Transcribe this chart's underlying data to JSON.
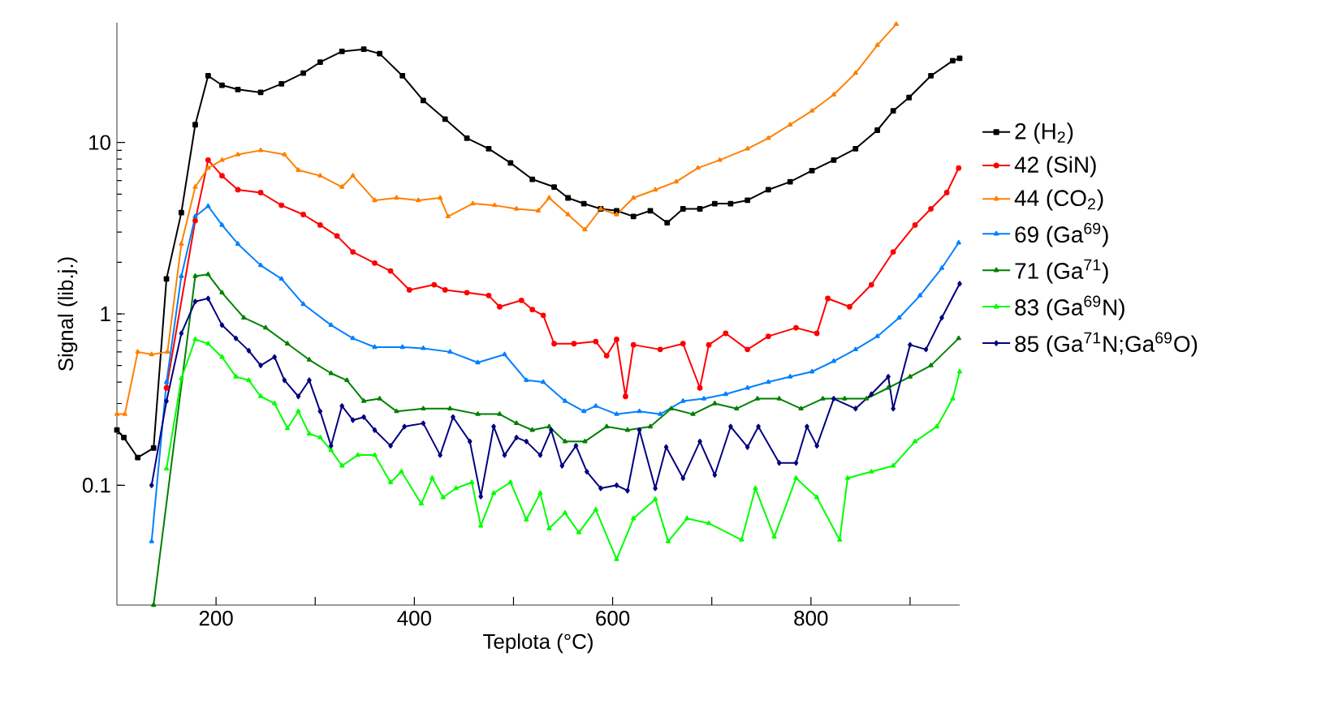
{
  "chart_data": {
    "type": "line",
    "xlabel": "Teplota (°C)",
    "ylabel": "Signal (lib.j.)",
    "log": "y",
    "legend": "right",
    "xlim": [
      100,
      950
    ],
    "ylim": [
      0.02,
      50
    ],
    "xticks": [
      200,
      {
        "value": 300,
        "label": null
      },
      400,
      {
        "value": 500,
        "label": null
      },
      600,
      {
        "value": 700,
        "label": null
      },
      800,
      {
        "value": 900,
        "label": null
      }
    ],
    "yticks": [
      0.1,
      1,
      10
    ],
    "series": [
      {
        "name": "2 (H$_{2}$)",
        "color": "#000000",
        "marker": "square",
        "x": [
          100,
          107,
          121,
          137,
          150,
          165,
          179,
          192,
          206,
          222,
          245,
          266,
          288,
          305,
          327,
          349,
          365,
          388,
          409,
          431,
          453,
          475,
          497,
          519,
          541,
          555,
          571,
          588,
          604,
          621,
          638,
          655,
          671,
          688,
          703,
          719,
          736,
          757,
          779,
          801,
          823,
          845,
          867,
          883,
          899,
          921,
          943,
          950
        ],
        "values": [
          0.21,
          0.19,
          0.145,
          0.165,
          1.6,
          3.9,
          12.7,
          24.5,
          21.6,
          20.4,
          19.6,
          22,
          25.4,
          29.4,
          34,
          35,
          33,
          24.5,
          17.6,
          13.7,
          10.6,
          9.2,
          7.6,
          6.1,
          5.5,
          4.75,
          4.4,
          4.1,
          4.0,
          3.7,
          4.0,
          3.4,
          4.1,
          4.1,
          4.4,
          4.4,
          4.6,
          5.3,
          5.9,
          6.85,
          7.9,
          9.2,
          11.8,
          15.3,
          18.3,
          24.5,
          30,
          31
        ]
      },
      {
        "name": "42 (SiN)",
        "color": "#ff0000",
        "marker": "circle",
        "x": [
          150,
          179,
          192,
          206,
          222,
          245,
          266,
          288,
          305,
          322,
          338,
          360,
          376,
          395,
          420,
          431,
          453,
          475,
          486,
          508,
          519,
          530,
          541,
          561,
          583,
          594,
          604,
          613,
          621,
          648,
          671,
          688,
          697,
          714,
          736,
          757,
          785,
          806,
          817,
          839,
          861,
          883,
          905,
          921,
          937,
          949
        ],
        "values": [
          0.37,
          3.5,
          7.9,
          6.4,
          5.3,
          5.1,
          4.3,
          3.8,
          3.3,
          2.85,
          2.3,
          1.98,
          1.78,
          1.38,
          1.48,
          1.38,
          1.33,
          1.28,
          1.1,
          1.2,
          1.06,
          0.98,
          0.67,
          0.67,
          0.69,
          0.57,
          0.71,
          0.33,
          0.66,
          0.62,
          0.67,
          0.37,
          0.66,
          0.77,
          0.62,
          0.74,
          0.83,
          0.77,
          1.23,
          1.1,
          1.48,
          2.3,
          3.3,
          4.1,
          5.1,
          7.1
        ]
      },
      {
        "name": "44 (CO$_{2}$)",
        "color": "#ff8000",
        "marker": "triangle",
        "x": [
          100,
          108,
          121,
          135,
          151,
          165,
          179,
          192,
          206,
          222,
          245,
          269,
          283,
          305,
          327,
          338,
          360,
          382,
          404,
          426,
          434,
          459,
          481,
          503,
          525,
          536,
          555,
          572,
          588,
          604,
          621,
          643,
          664,
          686,
          708,
          736,
          757,
          779,
          801,
          823,
          845,
          867,
          886
        ],
        "values": [
          0.26,
          0.26,
          0.6,
          0.58,
          0.6,
          2.56,
          5.5,
          7.1,
          7.9,
          8.5,
          9.0,
          8.5,
          6.9,
          6.4,
          5.5,
          6.4,
          4.6,
          4.75,
          4.6,
          4.75,
          3.7,
          4.4,
          4.3,
          4.1,
          4.0,
          4.75,
          3.8,
          3.1,
          4.1,
          3.8,
          4.75,
          5.3,
          5.9,
          7.1,
          7.9,
          9.2,
          10.6,
          12.7,
          15.3,
          19,
          25.4,
          37,
          49
        ]
      },
      {
        "name": "69 (Ga$^{69}$)",
        "color": "#0080ff",
        "marker": "triangle",
        "x": [
          135,
          150,
          165,
          179,
          192,
          206,
          222,
          245,
          266,
          288,
          316,
          338,
          360,
          388,
          409,
          436,
          464,
          491,
          513,
          530,
          552,
          571,
          583,
          604,
          627,
          648,
          671,
          692,
          714,
          736,
          757,
          779,
          801,
          823,
          845,
          867,
          889,
          910,
          932,
          949
        ],
        "values": [
          0.047,
          0.4,
          1.66,
          3.7,
          4.25,
          3.3,
          2.56,
          1.92,
          1.6,
          1.14,
          0.86,
          0.72,
          0.64,
          0.64,
          0.63,
          0.6,
          0.52,
          0.58,
          0.41,
          0.4,
          0.31,
          0.27,
          0.29,
          0.26,
          0.27,
          0.26,
          0.31,
          0.32,
          0.34,
          0.37,
          0.4,
          0.43,
          0.46,
          0.53,
          0.62,
          0.74,
          0.95,
          1.28,
          1.85,
          2.6
        ]
      },
      {
        "name": "71 (Ga$^{71}$)",
        "color": "#008000",
        "marker": "triangle",
        "x": [
          137,
          179,
          192,
          206,
          228,
          250,
          272,
          294,
          316,
          332,
          349,
          365,
          382,
          409,
          436,
          464,
          486,
          503,
          519,
          536,
          552,
          572,
          594,
          615,
          638,
          659,
          681,
          703,
          725,
          746,
          768,
          790,
          812,
          834,
          856,
          878,
          900,
          921,
          949
        ],
        "values": [
          0.02,
          1.66,
          1.7,
          1.33,
          0.95,
          0.83,
          0.67,
          0.54,
          0.45,
          0.41,
          0.31,
          0.32,
          0.27,
          0.28,
          0.28,
          0.26,
          0.26,
          0.23,
          0.21,
          0.22,
          0.18,
          0.18,
          0.22,
          0.21,
          0.22,
          0.28,
          0.26,
          0.3,
          0.28,
          0.32,
          0.32,
          0.28,
          0.32,
          0.32,
          0.32,
          0.37,
          0.43,
          0.5,
          0.72
        ]
      },
      {
        "name": "83 (Ga$^{69}$N)",
        "color": "#00ff00",
        "marker": "triangle",
        "x": [
          150,
          165,
          179,
          192,
          206,
          220,
          233,
          245,
          259,
          272,
          283,
          294,
          305,
          316,
          327,
          343,
          360,
          376,
          387,
          407,
          418,
          429,
          442,
          458,
          467,
          480,
          497,
          513,
          527,
          536,
          552,
          566,
          583,
          604,
          621,
          643,
          656,
          675,
          697,
          730,
          744,
          763,
          785,
          806,
          829,
          837,
          861,
          883,
          905,
          927,
          943,
          950
        ],
        "values": [
          0.125,
          0.42,
          0.71,
          0.67,
          0.56,
          0.43,
          0.41,
          0.33,
          0.3,
          0.215,
          0.27,
          0.2,
          0.19,
          0.16,
          0.13,
          0.15,
          0.15,
          0.104,
          0.12,
          0.078,
          0.11,
          0.085,
          0.096,
          0.104,
          0.058,
          0.09,
          0.104,
          0.063,
          0.09,
          0.056,
          0.069,
          0.053,
          0.072,
          0.037,
          0.064,
          0.083,
          0.047,
          0.064,
          0.06,
          0.048,
          0.096,
          0.05,
          0.11,
          0.085,
          0.048,
          0.11,
          0.12,
          0.13,
          0.18,
          0.22,
          0.32,
          0.46
        ]
      },
      {
        "name": "85 (Ga$^{71}$N;Ga$^{69}$O)",
        "color": "#000080",
        "marker": "diamond",
        "x": [
          135,
          150,
          165,
          179,
          192,
          206,
          220,
          233,
          245,
          259,
          269,
          283,
          294,
          305,
          316,
          327,
          338,
          349,
          360,
          376,
          390,
          409,
          426,
          439,
          456,
          467,
          480,
          491,
          503,
          513,
          527,
          538,
          549,
          563,
          574,
          588,
          604,
          615,
          627,
          643,
          654,
          671,
          688,
          703,
          719,
          736,
          747,
          768,
          785,
          796,
          806,
          823,
          845,
          861,
          878,
          883,
          900,
          916,
          932,
          950
        ],
        "values": [
          0.1,
          0.31,
          0.77,
          1.18,
          1.23,
          0.86,
          0.72,
          0.61,
          0.5,
          0.56,
          0.41,
          0.33,
          0.41,
          0.27,
          0.17,
          0.29,
          0.24,
          0.25,
          0.21,
          0.17,
          0.22,
          0.23,
          0.15,
          0.25,
          0.18,
          0.086,
          0.22,
          0.15,
          0.19,
          0.18,
          0.15,
          0.21,
          0.13,
          0.17,
          0.12,
          0.096,
          0.1,
          0.093,
          0.21,
          0.096,
          0.167,
          0.11,
          0.18,
          0.115,
          0.22,
          0.167,
          0.22,
          0.135,
          0.135,
          0.22,
          0.17,
          0.32,
          0.28,
          0.34,
          0.43,
          0.28,
          0.66,
          0.62,
          0.95,
          1.5
        ]
      }
    ]
  }
}
